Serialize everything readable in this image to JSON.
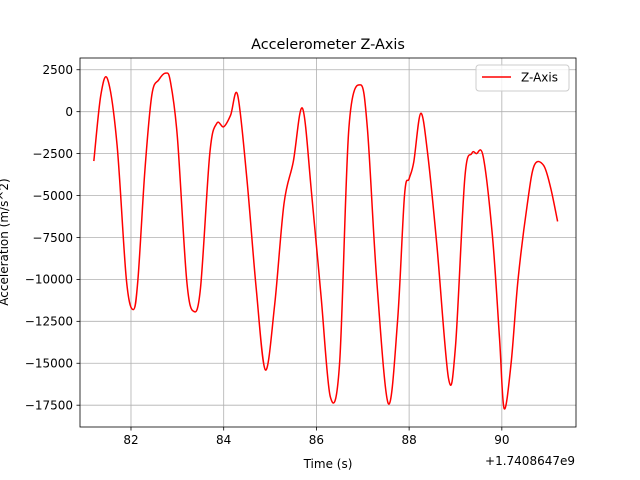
{
  "chart_data": {
    "type": "line",
    "title": "Accelerometer Z-Axis",
    "xlabel": "Time (s)",
    "ylabel": "Acceleration (m/s^2)",
    "x_offset_label": "+1.7408647e9",
    "xlim": [
      80.9,
      91.6
    ],
    "ylim": [
      -18800,
      3200
    ],
    "x_ticks": [
      82,
      84,
      86,
      88,
      90
    ],
    "x_tick_labels": [
      "82",
      "84",
      "86",
      "88",
      "90"
    ],
    "y_ticks": [
      2500,
      0,
      -2500,
      -5000,
      -7500,
      -10000,
      -12500,
      -15000,
      -17500
    ],
    "y_tick_labels": [
      "2500",
      "0",
      "−2500",
      "−5000",
      "−7500",
      "−10000",
      "−12500",
      "−15000",
      "−17500"
    ],
    "grid": true,
    "legend_position": "top-right",
    "series": [
      {
        "name": "Z-Axis",
        "color": "#ff0000",
        "x": [
          81.2,
          81.35,
          81.5,
          81.7,
          81.9,
          82.05,
          82.15,
          82.3,
          82.45,
          82.6,
          82.75,
          82.85,
          83.0,
          83.2,
          83.35,
          83.5,
          83.7,
          83.85,
          84.0,
          84.15,
          84.3,
          84.5,
          84.7,
          84.9,
          85.1,
          85.3,
          85.5,
          85.7,
          85.9,
          86.1,
          86.3,
          86.5,
          86.7,
          86.95,
          87.1,
          87.3,
          87.55,
          87.75,
          87.9,
          88.0,
          88.1,
          88.25,
          88.4,
          88.6,
          88.85,
          89.0,
          89.2,
          89.35,
          89.45,
          89.6,
          89.8,
          89.95,
          90.05,
          90.2,
          90.35,
          90.55,
          90.7,
          90.9,
          91.05,
          91.2
        ],
        "y": [
          -2900,
          1000,
          1900,
          -2000,
          -10000,
          -11800,
          -10000,
          -3500,
          1000,
          1900,
          2300,
          1800,
          -1500,
          -10000,
          -11900,
          -10500,
          -2500,
          -700,
          -900,
          -200,
          1000,
          -4000,
          -10500,
          -15400,
          -11500,
          -5500,
          -3000,
          200,
          -5000,
          -11000,
          -17000,
          -15000,
          -1000,
          1600,
          -1000,
          -10000,
          -17400,
          -12500,
          -5000,
          -4000,
          -3000,
          -100,
          -2500,
          -8000,
          -15900,
          -14000,
          -4000,
          -2500,
          -2500,
          -2700,
          -7500,
          -13500,
          -17700,
          -15000,
          -10000,
          -5500,
          -3200,
          -3200,
          -4500,
          -6500
        ]
      }
    ]
  }
}
